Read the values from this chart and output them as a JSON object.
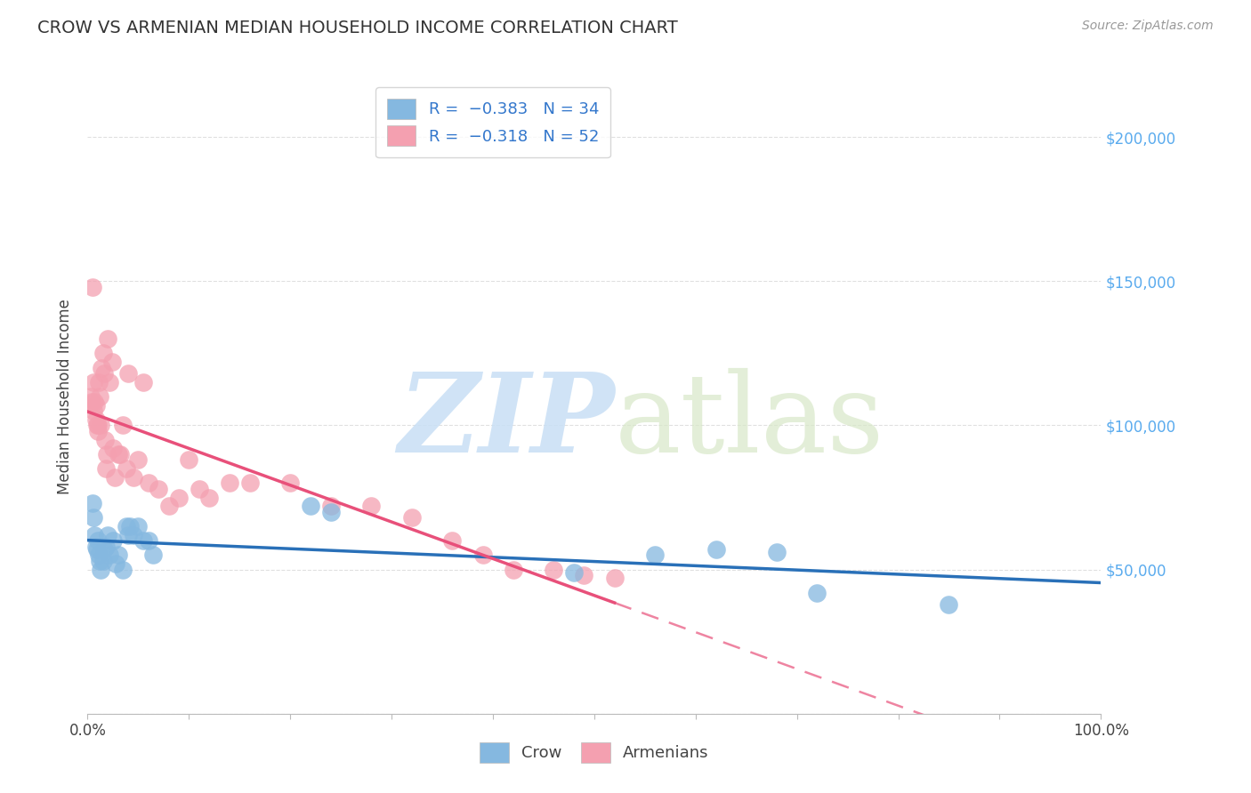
{
  "title": "CROW VS ARMENIAN MEDIAN HOUSEHOLD INCOME CORRELATION CHART",
  "source": "Source: ZipAtlas.com",
  "ylabel": "Median Household Income",
  "xlim": [
    0,
    1.0
  ],
  "ylim": [
    0,
    220000
  ],
  "yticks": [
    0,
    50000,
    100000,
    150000,
    200000
  ],
  "ytick_labels": [
    "",
    "$50,000",
    "$100,000",
    "$150,000",
    "$200,000"
  ],
  "crow_color": "#85b8e0",
  "armenian_color": "#f4a0b0",
  "crow_line_color": "#2970b8",
  "armenian_line_color": "#e8507a",
  "watermark_zip": "ZIP",
  "watermark_atlas": "atlas",
  "crow_x": [
    0.005,
    0.006,
    0.007,
    0.008,
    0.009,
    0.01,
    0.011,
    0.012,
    0.013,
    0.015,
    0.016,
    0.018,
    0.02,
    0.022,
    0.025,
    0.028,
    0.03,
    0.035,
    0.038,
    0.04,
    0.042,
    0.045,
    0.05,
    0.055,
    0.06,
    0.065,
    0.22,
    0.24,
    0.48,
    0.56,
    0.62,
    0.68,
    0.72,
    0.85
  ],
  "crow_y": [
    73000,
    68000,
    62000,
    58000,
    57000,
    60000,
    55000,
    53000,
    50000,
    53000,
    57000,
    58000,
    62000,
    55000,
    60000,
    52000,
    55000,
    50000,
    65000,
    62000,
    65000,
    62000,
    65000,
    60000,
    60000,
    55000,
    72000,
    70000,
    49000,
    55000,
    57000,
    56000,
    42000,
    38000
  ],
  "armenian_x": [
    0.003,
    0.004,
    0.005,
    0.006,
    0.006,
    0.007,
    0.008,
    0.008,
    0.009,
    0.01,
    0.01,
    0.011,
    0.012,
    0.013,
    0.014,
    0.015,
    0.016,
    0.017,
    0.018,
    0.019,
    0.02,
    0.022,
    0.024,
    0.025,
    0.027,
    0.03,
    0.032,
    0.035,
    0.038,
    0.04,
    0.045,
    0.05,
    0.055,
    0.06,
    0.07,
    0.08,
    0.09,
    0.1,
    0.11,
    0.12,
    0.14,
    0.16,
    0.2,
    0.24,
    0.28,
    0.32,
    0.36,
    0.39,
    0.42,
    0.46,
    0.49,
    0.52
  ],
  "armenian_y": [
    110000,
    108000,
    148000,
    105000,
    115000,
    108000,
    102000,
    107000,
    100000,
    100000,
    98000,
    115000,
    110000,
    100000,
    120000,
    125000,
    118000,
    95000,
    85000,
    90000,
    130000,
    115000,
    122000,
    92000,
    82000,
    90000,
    90000,
    100000,
    85000,
    118000,
    82000,
    88000,
    115000,
    80000,
    78000,
    72000,
    75000,
    88000,
    78000,
    75000,
    80000,
    80000,
    80000,
    72000,
    72000,
    68000,
    60000,
    55000,
    50000,
    50000,
    48000,
    47000
  ]
}
